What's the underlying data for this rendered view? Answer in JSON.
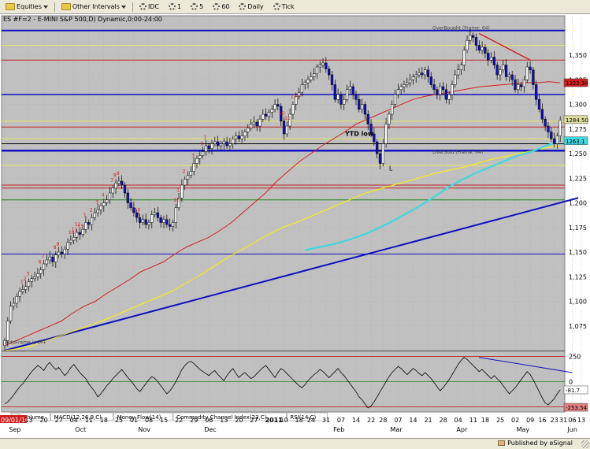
{
  "toolbar": {
    "items": [
      {
        "label": "Equities",
        "icon": "folder-icon"
      },
      {
        "label": "Other Intervals",
        "icon": "folder-icon"
      },
      {
        "label": "IDC",
        "icon": "radio-icon"
      },
      {
        "label": "1",
        "icon": "radio-icon"
      },
      {
        "label": "5",
        "icon": "radio-icon"
      },
      {
        "label": "60",
        "icon": "radio-icon"
      },
      {
        "label": "Daily",
        "icon": "radio-icon"
      },
      {
        "label": "Tick",
        "icon": "radio-icon"
      }
    ]
  },
  "chart_data": {
    "type": "candlestick",
    "title": "ES #F=2 - E-MINI S&P 500,D) Dynamic,0:00-24:00",
    "price_axis": {
      "ylim": [
        1050,
        1390
      ],
      "ticks": [
        1075,
        1100,
        1125,
        1150,
        1175,
        1200,
        1225,
        1250,
        1275,
        1300,
        1325,
        1350
      ]
    },
    "price_badges": [
      {
        "value": "1322.34",
        "color": "#d22020"
      },
      {
        "value": "1284.50",
        "color": "#e0e0a0"
      },
      {
        "value": "1263.1",
        "color": "#40d8e0"
      }
    ],
    "closes": [
      1060,
      1080,
      1095,
      1098,
      1105,
      1110,
      1112,
      1115,
      1120,
      1123,
      1125,
      1128,
      1132,
      1138,
      1142,
      1145,
      1140,
      1147,
      1150,
      1148,
      1153,
      1160,
      1162,
      1165,
      1170,
      1168,
      1173,
      1180,
      1178,
      1185,
      1190,
      1193,
      1197,
      1200,
      1203,
      1210,
      1215,
      1220,
      1222,
      1218,
      1210,
      1200,
      1195,
      1190,
      1185,
      1180,
      1183,
      1178,
      1180,
      1188,
      1190,
      1185,
      1180,
      1183,
      1178,
      1176,
      1180,
      1195,
      1205,
      1218,
      1224,
      1228,
      1232,
      1240,
      1245,
      1248,
      1252,
      1258,
      1255,
      1260,
      1262,
      1258,
      1260,
      1262,
      1258,
      1260,
      1265,
      1268,
      1265,
      1268,
      1272,
      1276,
      1280,
      1282,
      1278,
      1285,
      1290,
      1288,
      1292,
      1295,
      1300,
      1298,
      1283,
      1270,
      1278,
      1290,
      1300,
      1308,
      1312,
      1320,
      1322,
      1325,
      1328,
      1331,
      1338,
      1340,
      1342,
      1336,
      1330,
      1320,
      1305,
      1310,
      1300,
      1305,
      1315,
      1318,
      1310,
      1305,
      1295,
      1300,
      1290,
      1280,
      1270,
      1262,
      1250,
      1240,
      1260,
      1280,
      1290,
      1300,
      1310,
      1315,
      1318,
      1320,
      1322,
      1325,
      1328,
      1330,
      1332,
      1330,
      1335,
      1328,
      1320,
      1315,
      1310,
      1318,
      1315,
      1305,
      1310,
      1320,
      1330,
      1335,
      1340,
      1355,
      1365,
      1370,
      1368,
      1360,
      1355,
      1358,
      1352,
      1345,
      1348,
      1340,
      1330,
      1335,
      1340,
      1328,
      1330,
      1325,
      1315,
      1320,
      1318,
      1325,
      1338,
      1335,
      1320,
      1305,
      1295,
      1285,
      1278,
      1272,
      1265,
      1260,
      1268,
      1284
    ],
    "moving_averages": [
      {
        "color": "#d22020",
        "values": [
          1055,
          1060,
          1065,
          1070,
          1075,
          1080,
          1088,
          1095,
          1100,
          1108,
          1115,
          1122,
          1130,
          1135,
          1140,
          1148,
          1155,
          1160,
          1165,
          1172,
          1180,
          1190,
          1200,
          1210,
          1222,
          1232,
          1242,
          1250,
          1258,
          1265,
          1272,
          1280,
          1285,
          1290,
          1295,
          1300,
          1305,
          1308,
          1310,
          1312,
          1314,
          1316,
          1318,
          1319,
          1320,
          1321,
          1322,
          1322,
          1323,
          1322
        ]
      },
      {
        "color": "#fff200",
        "values": [
          1050,
          1052,
          1055,
          1060,
          1065,
          1070,
          1075,
          1080,
          1086,
          1092,
          1098,
          1104,
          1110,
          1118,
          1126,
          1135,
          1144,
          1152,
          1160,
          1168,
          1175,
          1180,
          1186,
          1192,
          1198,
          1204,
          1210,
          1214,
          1218,
          1222,
          1226,
          1230,
          1233,
          1236,
          1240,
          1244,
          1247,
          1250,
          1253,
          1256,
          1258
        ]
      },
      {
        "color": "#40d8e0",
        "values": [
          1152,
          1155,
          1158,
          1162,
          1167,
          1173,
          1180,
          1188,
          1196,
          1205,
          1215,
          1223,
          1230,
          1236,
          1242,
          1248,
          1252,
          1258,
          1263
        ]
      }
    ],
    "annotations": [
      {
        "text": "OverBought (Frame: 64)",
        "value": 1376
      },
      {
        "text": "OverSold (Frame: 64)",
        "value": 1250
      },
      {
        "text": "YTD low",
        "value": 1268
      },
      {
        "text": "AutoFrame is OFF",
        "value": 1057
      }
    ],
    "sequential_counts": [
      {
        "index": 6,
        "text": "1"
      },
      {
        "index": 7,
        "text": "2"
      },
      {
        "index": 8,
        "text": "3"
      },
      {
        "index": 12,
        "text": "6"
      },
      {
        "index": 13,
        "text": "7"
      },
      {
        "index": 17,
        "text": "8"
      },
      {
        "index": 18,
        "text": "9"
      },
      {
        "index": 22,
        "text": "10"
      },
      {
        "index": 23,
        "text": "11"
      },
      {
        "index": 24,
        "text": "12"
      },
      {
        "index": 25,
        "text": "13"
      },
      {
        "index": 27,
        "text": "1"
      },
      {
        "index": 29,
        "text": "2"
      },
      {
        "index": 31,
        "text": "3"
      },
      {
        "index": 33,
        "text": "4"
      },
      {
        "index": 36,
        "text": "7"
      },
      {
        "index": 37,
        "text": "8"
      },
      {
        "index": 38,
        "text": "9"
      },
      {
        "index": 44,
        "text": "10"
      },
      {
        "index": 45,
        "text": "1"
      },
      {
        "index": 57,
        "text": "13"
      },
      {
        "index": 58,
        "text": "1"
      },
      {
        "index": 60,
        "text": "2"
      },
      {
        "index": 63,
        "text": "3"
      },
      {
        "index": 66,
        "text": "6"
      },
      {
        "index": 67,
        "text": "7"
      },
      {
        "index": 92,
        "text": "10"
      },
      {
        "index": 94,
        "text": "11"
      },
      {
        "index": 96,
        "text": "123"
      }
    ],
    "horizontal_lines": [
      {
        "value": 1375,
        "color": "#1010c0",
        "width": 2
      },
      {
        "value": 1360,
        "color": "#e8e860",
        "width": 1
      },
      {
        "value": 1345,
        "color": "#c02020",
        "width": 1
      },
      {
        "value": 1310,
        "color": "#1010c0",
        "width": 1.5
      },
      {
        "value": 1283,
        "color": "#e8e860",
        "width": 1
      },
      {
        "value": 1277,
        "color": "#c02020",
        "width": 1
      },
      {
        "value": 1265,
        "color": "#e8e860",
        "width": 1
      },
      {
        "value": 1260,
        "color": "#000000",
        "width": 1
      },
      {
        "value": 1253,
        "color": "#1010c0",
        "width": 2.5
      },
      {
        "value": 1238,
        "color": "#e8e860",
        "width": 1
      },
      {
        "value": 1218,
        "color": "#c02020",
        "width": 1
      },
      {
        "value": 1215,
        "color": "#c02020",
        "width": 1
      },
      {
        "value": 1203,
        "color": "#208020",
        "width": 1
      },
      {
        "value": 1148,
        "color": "#1010c0",
        "width": 1
      }
    ],
    "trendlines": [
      {
        "color": "#1010c0",
        "from": [
          0,
          1050
        ],
        "to": [
          191,
          1205
        ],
        "width": 2
      },
      {
        "color": "#d22020",
        "from": [
          158,
          1372
        ],
        "to": [
          175,
          1345
        ],
        "width": 1.5
      }
    ],
    "oscillator": {
      "ylim": [
        -300,
        300
      ],
      "badges": [
        {
          "value": "-81.7",
          "color": "#ffffff"
        },
        {
          "value": "-253.54",
          "color": "#e08080"
        }
      ],
      "ticks": [
        250,
        0,
        -250
      ],
      "values": [
        -220,
        -200,
        -170,
        -130,
        -90,
        -50,
        -20,
        20,
        60,
        100,
        130,
        160,
        140,
        110,
        160,
        190,
        150,
        120,
        140,
        100,
        60,
        90,
        140,
        170,
        130,
        90,
        60,
        30,
        -20,
        -60,
        -100,
        -150,
        -120,
        -80,
        -40,
        -10,
        30,
        60,
        90,
        120,
        80,
        40,
        10,
        -30,
        -70,
        -100,
        -60,
        -20,
        20,
        50,
        30,
        0,
        -40,
        -80,
        -120,
        -90,
        -50,
        0,
        60,
        120,
        160,
        190,
        200,
        180,
        150,
        120,
        100,
        80,
        60,
        90,
        110,
        70,
        40,
        10,
        60,
        100,
        130,
        80,
        40,
        70,
        90,
        60,
        30,
        50,
        80,
        110,
        140,
        160,
        120,
        80,
        40,
        90,
        130,
        110,
        80,
        50,
        20,
        -10,
        -40,
        -60,
        -30,
        10,
        40,
        70,
        90,
        120,
        100,
        70,
        40,
        70,
        100,
        130,
        90,
        60,
        20,
        -20,
        -60,
        -100,
        -150,
        -180,
        -220,
        -260,
        -240,
        -200,
        -150,
        -100,
        -50,
        0,
        50,
        90,
        120,
        150,
        130,
        100,
        70,
        100,
        130,
        110,
        80,
        60,
        90,
        60,
        30,
        -10,
        -50,
        -90,
        -60,
        -20,
        20,
        70,
        120,
        170,
        210,
        240,
        220,
        190,
        160,
        130,
        100,
        120,
        90,
        60,
        30,
        60,
        30,
        0,
        -40,
        -80,
        -120,
        -90,
        -60,
        -20,
        20,
        60,
        100,
        70,
        20,
        -40,
        -100,
        -160,
        -210,
        -230,
        -200,
        -170,
        -120,
        -80
      ]
    },
    "tabs": [
      "Volume",
      "MACD(12,26,9,C)",
      "Money Flow(14)",
      "Commodity Channel Index(23,C)",
      "RSI(14,C)"
    ],
    "x_ticks": [
      {
        "label": "09/01/10",
        "index": 0
      },
      {
        "label": "13",
        "index": 8
      },
      {
        "label": "20",
        "index": 13
      },
      {
        "label": "27",
        "index": 18
      },
      {
        "label": "04",
        "index": 23
      },
      {
        "label": "11",
        "index": 28
      },
      {
        "label": "18",
        "index": 33
      },
      {
        "label": "25",
        "index": 38
      },
      {
        "label": "01",
        "index": 43
      },
      {
        "label": "08",
        "index": 48
      },
      {
        "label": "15",
        "index": 53
      },
      {
        "label": "22",
        "index": 58
      },
      {
        "label": "29",
        "index": 63
      },
      {
        "label": "06",
        "index": 68
      },
      {
        "label": "13",
        "index": 73
      },
      {
        "label": "20",
        "index": 78
      },
      {
        "label": "27",
        "index": 83
      },
      {
        "label": "2011",
        "index": 88
      },
      {
        "label": "10",
        "index": 93
      },
      {
        "label": "18",
        "index": 98
      },
      {
        "label": "24",
        "index": 102
      },
      {
        "label": "31",
        "index": 107
      },
      {
        "label": "07",
        "index": 112
      },
      {
        "label": "14",
        "index": 117
      },
      {
        "label": "22",
        "index": 122
      },
      {
        "label": "28",
        "index": 126
      },
      {
        "label": "07",
        "index": 131
      },
      {
        "label": "14",
        "index": 136
      },
      {
        "label": "21",
        "index": 141
      },
      {
        "label": "28",
        "index": 146
      },
      {
        "label": "04",
        "index": 151
      },
      {
        "label": "11",
        "index": 156
      },
      {
        "label": "18",
        "index": 160
      },
      {
        "label": "25",
        "index": 165
      },
      {
        "label": "02",
        "index": 170
      },
      {
        "label": "09",
        "index": 175
      },
      {
        "label": "16",
        "index": 179
      },
      {
        "label": "23",
        "index": 183
      },
      {
        "label": "31",
        "index": 186
      },
      {
        "label": "06",
        "index": 189
      },
      {
        "label": "13",
        "index": 192
      }
    ],
    "month_labels": [
      {
        "label": "Sep",
        "index": 3
      },
      {
        "label": "Oct",
        "index": 25
      },
      {
        "label": "Nov",
        "index": 46
      },
      {
        "label": "Dec",
        "index": 68
      },
      {
        "label": "Feb",
        "index": 111
      },
      {
        "label": "Mar",
        "index": 130
      },
      {
        "label": "Apr",
        "index": 152
      },
      {
        "label": "May",
        "index": 172
      },
      {
        "label": "Jun",
        "index": 189
      }
    ],
    "marker_label": "L"
  },
  "status": {
    "published": "Published by eSignal",
    "icon": "esignal-logo-icon"
  }
}
